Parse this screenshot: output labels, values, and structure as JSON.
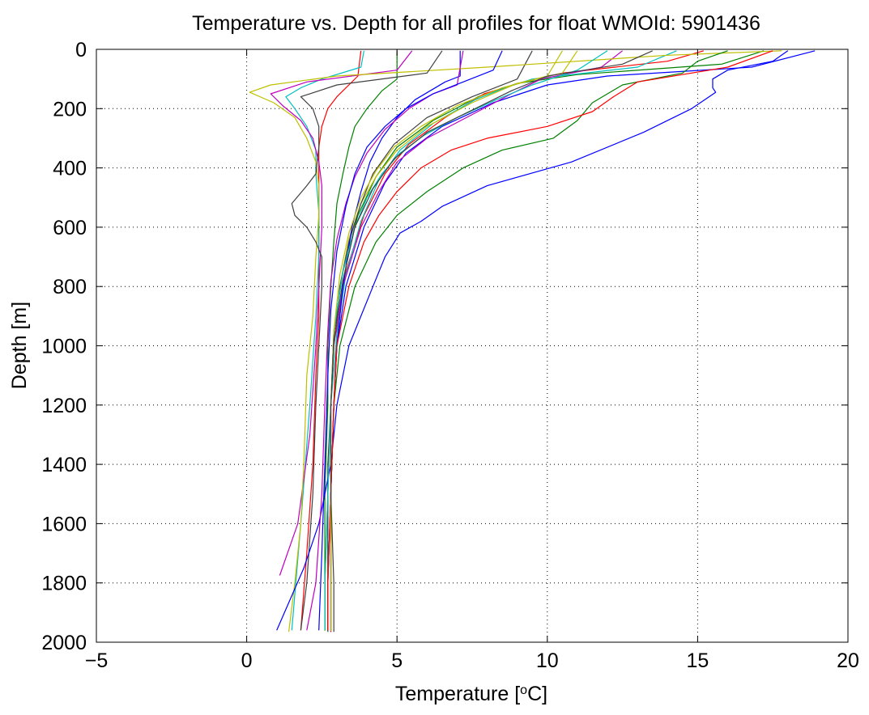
{
  "chart_data": {
    "type": "line",
    "title": "Temperature vs. Depth for all profiles for float WMOId: 5901436",
    "xlabel_prefix": "Temperature [",
    "xlabel_sup": "o",
    "xlabel_suffix": "C]",
    "ylabel": "Depth [m]",
    "xlim": [
      -5,
      20
    ],
    "ylim": [
      0,
      2000
    ],
    "y_reversed": true,
    "grid": "dotted",
    "xticks": [
      -5,
      0,
      5,
      10,
      15,
      20
    ],
    "yticks": [
      0,
      200,
      400,
      600,
      800,
      1000,
      1200,
      1400,
      1600,
      1800,
      2000
    ],
    "xtick_labels": [
      "−5",
      "0",
      "5",
      "10",
      "15",
      "20"
    ],
    "ytick_labels": [
      "0",
      "200",
      "400",
      "600",
      "800",
      "1000",
      "1200",
      "1400",
      "1600",
      "1800",
      "2000"
    ],
    "colors": [
      "#0000ff",
      "#008000",
      "#ff0000",
      "#00bfbf",
      "#bf00bf",
      "#bfbf00",
      "#404040"
    ],
    "series": [
      {
        "depth": [
          5,
          60,
          90,
          120,
          180,
          260,
          350,
          450,
          600,
          800,
          1000,
          1200,
          1500,
          1800,
          1965
        ],
        "temp": [
          18.9,
          16.8,
          12.0,
          10.0,
          8.2,
          6.5,
          5.3,
          4.6,
          3.9,
          3.3,
          3.0,
          2.9,
          2.8,
          2.8,
          2.8
        ]
      },
      {
        "depth": [
          5,
          50,
          85,
          115,
          160,
          240,
          330,
          430,
          560,
          750,
          950,
          1200,
          1500,
          1800,
          1960
        ],
        "temp": [
          17.2,
          15.8,
          11.0,
          9.0,
          7.7,
          6.2,
          5.0,
          4.3,
          3.7,
          3.2,
          2.9,
          2.8,
          2.7,
          2.6,
          2.6
        ]
      },
      {
        "depth": [
          5,
          40,
          80,
          110,
          150,
          230,
          320,
          420,
          560,
          750,
          950,
          1200,
          1500,
          1800,
          1965
        ],
        "temp": [
          15.2,
          14.0,
          10.5,
          9.2,
          7.9,
          6.6,
          5.4,
          4.6,
          3.9,
          3.3,
          3.0,
          2.9,
          2.8,
          2.8,
          2.8
        ]
      },
      {
        "depth": [
          5,
          60,
          100,
          130,
          170,
          250,
          340,
          440,
          580,
          760,
          960,
          1200,
          1500,
          1800,
          1962
        ],
        "temp": [
          14.3,
          13.0,
          9.5,
          8.6,
          7.6,
          6.2,
          5.1,
          4.4,
          3.8,
          3.3,
          3.0,
          2.8,
          2.7,
          2.7,
          2.7
        ]
      },
      {
        "depth": [
          5,
          60,
          100,
          150,
          220,
          300,
          380,
          480,
          600,
          800,
          1000,
          1200,
          1500,
          1800,
          1960
        ],
        "temp": [
          12.5,
          11.8,
          9.8,
          8.8,
          7.5,
          6.0,
          5.0,
          4.4,
          3.8,
          3.2,
          2.9,
          2.8,
          2.8,
          2.7,
          2.7
        ]
      },
      {
        "depth": [
          5,
          80,
          115,
          180,
          260,
          340,
          430,
          520,
          640,
          800,
          1000,
          1200,
          1500,
          1800,
          1962
        ],
        "temp": [
          11.0,
          10.5,
          9.0,
          7.5,
          6.0,
          5.0,
          4.3,
          3.8,
          3.4,
          3.1,
          2.9,
          2.8,
          2.7,
          2.6,
          2.6
        ]
      },
      {
        "depth": [
          5,
          100,
          160,
          230,
          320,
          420,
          520,
          650,
          800,
          1000,
          1200,
          1400,
          1600,
          1800,
          1965
        ],
        "temp": [
          9.5,
          9.0,
          7.5,
          6.0,
          4.9,
          4.2,
          3.8,
          3.4,
          3.1,
          2.9,
          2.8,
          2.7,
          2.7,
          2.7,
          2.7
        ]
      },
      {
        "depth": [
          5,
          90,
          110,
          170,
          230,
          300,
          380,
          480,
          600,
          800,
          1000,
          1200,
          1500,
          1800,
          1960
        ],
        "temp": [
          7.1,
          7.1,
          6.6,
          5.6,
          5.0,
          4.5,
          4.1,
          3.8,
          3.5,
          3.2,
          3.0,
          2.9,
          2.8,
          2.8,
          2.8
        ]
      },
      {
        "depth": [
          5,
          100,
          140,
          200,
          260,
          330,
          420,
          520,
          650,
          800,
          1000,
          1200,
          1500,
          1800,
          1960
        ],
        "temp": [
          5.0,
          5.0,
          4.5,
          4.0,
          3.6,
          3.4,
          3.2,
          3.0,
          2.9,
          2.8,
          2.7,
          2.7,
          2.6,
          2.6,
          2.6
        ]
      },
      {
        "depth": [
          5,
          90,
          120,
          160,
          200,
          260,
          330,
          420,
          520,
          700,
          900,
          1100,
          1400,
          1700,
          1960
        ],
        "temp": [
          3.8,
          3.7,
          3.4,
          3.0,
          2.7,
          2.5,
          2.4,
          2.4,
          2.4,
          2.4,
          2.4,
          2.3,
          2.2,
          2.0,
          1.8
        ]
      },
      {
        "depth": [
          5,
          60,
          100,
          130,
          160,
          200,
          260,
          340,
          420,
          550,
          700,
          900,
          1200,
          1600,
          1960
        ],
        "temp": [
          3.9,
          3.8,
          2.5,
          1.8,
          1.3,
          1.6,
          2.0,
          2.3,
          2.3,
          2.4,
          2.4,
          2.3,
          2.1,
          1.8,
          1.5
        ]
      },
      {
        "depth": [
          5,
          70,
          110,
          150,
          190,
          240,
          300,
          380,
          460,
          600,
          800,
          1000,
          1300,
          1600,
          1775
        ],
        "temp": [
          5.5,
          5.0,
          2.0,
          0.8,
          1.2,
          1.8,
          2.2,
          2.4,
          2.5,
          2.5,
          2.4,
          2.3,
          2.1,
          1.7,
          1.1
        ]
      },
      {
        "depth": [
          5,
          20,
          60,
          90,
          120,
          145,
          180,
          230,
          300,
          380,
          460,
          560,
          700,
          900,
          1100,
          1400,
          1600,
          1800,
          1965
        ],
        "temp": [
          17.8,
          14.0,
          8.0,
          3.0,
          0.8,
          0.1,
          0.9,
          1.6,
          2.0,
          2.3,
          2.4,
          2.4,
          2.3,
          2.2,
          2.0,
          1.9,
          1.8,
          1.6,
          1.4
        ]
      },
      {
        "depth": [
          5,
          80,
          120,
          160,
          200,
          260,
          330,
          420,
          460,
          520,
          560,
          600,
          650,
          700,
          800,
          1000,
          1200,
          1500,
          1800,
          1960
        ],
        "temp": [
          6.5,
          6.0,
          3.0,
          1.8,
          2.2,
          2.4,
          2.4,
          2.3,
          2.0,
          1.5,
          1.6,
          2.0,
          2.3,
          2.5,
          2.5,
          2.4,
          2.3,
          2.2,
          2.0,
          1.8
        ]
      },
      {
        "depth": [
          5,
          40,
          70,
          100,
          130,
          145,
          200,
          280,
          380,
          460,
          530,
          580,
          620,
          700,
          800,
          1000,
          1200,
          1400,
          1600,
          1750,
          1960
        ],
        "temp": [
          18.0,
          17.5,
          16.0,
          15.5,
          15.5,
          15.6,
          14.8,
          13.2,
          10.8,
          8.0,
          6.5,
          5.8,
          5.1,
          4.6,
          4.2,
          3.4,
          3.0,
          2.8,
          2.4,
          1.9,
          1.0
        ]
      },
      {
        "depth": [
          5,
          40,
          80,
          120,
          180,
          240,
          300,
          340,
          400,
          480,
          560,
          650,
          800,
          1000,
          1200,
          1500,
          1800,
          1960
        ],
        "temp": [
          16.0,
          15.0,
          14.5,
          12.5,
          11.5,
          11.0,
          10.2,
          8.5,
          7.2,
          6.0,
          5.0,
          4.3,
          3.6,
          3.1,
          2.9,
          2.8,
          2.7,
          2.7
        ]
      },
      {
        "depth": [
          5,
          60,
          110,
          160,
          210,
          260,
          300,
          340,
          400,
          480,
          560,
          650,
          800,
          1000,
          1200,
          1500,
          1800,
          1960
        ],
        "temp": [
          17.5,
          16.0,
          13.0,
          12.2,
          11.5,
          10.0,
          8.0,
          6.8,
          5.8,
          5.0,
          4.4,
          3.9,
          3.4,
          3.0,
          2.9,
          2.8,
          2.7,
          2.7
        ]
      },
      {
        "depth": [
          5,
          70,
          120,
          170,
          230,
          290,
          350,
          420,
          500,
          600,
          750,
          950,
          1200,
          1500,
          1800,
          1960
        ],
        "temp": [
          12.0,
          11.0,
          9.5,
          8.3,
          7.0,
          5.9,
          5.1,
          4.5,
          4.0,
          3.6,
          3.2,
          2.9,
          2.8,
          2.7,
          2.6,
          2.6
        ]
      },
      {
        "depth": [
          5,
          120,
          150,
          200,
          270,
          350,
          430,
          520,
          640,
          780,
          950,
          1200,
          1500,
          1800,
          1960
        ],
        "temp": [
          7.2,
          7.0,
          6.2,
          5.4,
          4.6,
          4.0,
          3.6,
          3.3,
          3.0,
          2.8,
          2.7,
          2.6,
          2.5,
          2.3,
          2.0
        ]
      },
      {
        "depth": [
          5,
          90,
          130,
          190,
          260,
          330,
          410,
          500,
          620,
          760,
          950,
          1200,
          1500,
          1800,
          1962
        ],
        "temp": [
          10.5,
          10.0,
          8.5,
          7.0,
          5.8,
          4.9,
          4.3,
          3.8,
          3.4,
          3.1,
          2.9,
          2.8,
          2.8,
          2.8,
          2.8
        ]
      },
      {
        "depth": [
          5,
          50,
          90,
          140,
          200,
          280,
          370,
          470,
          600,
          780,
          980,
          1200,
          1500,
          1800,
          1965
        ],
        "temp": [
          13.5,
          12.5,
          10.0,
          8.8,
          7.6,
          6.0,
          4.9,
          4.2,
          3.6,
          3.2,
          2.9,
          2.8,
          2.8,
          2.9,
          2.9
        ]
      },
      {
        "depth": [
          5,
          70,
          110,
          150,
          200,
          260,
          330,
          420,
          530,
          680,
          880,
          1100,
          1400,
          1700,
          1960
        ],
        "temp": [
          8.5,
          8.2,
          7.2,
          6.2,
          5.3,
          4.6,
          4.0,
          3.6,
          3.3,
          3.0,
          2.8,
          2.7,
          2.6,
          2.5,
          2.4
        ]
      }
    ]
  }
}
